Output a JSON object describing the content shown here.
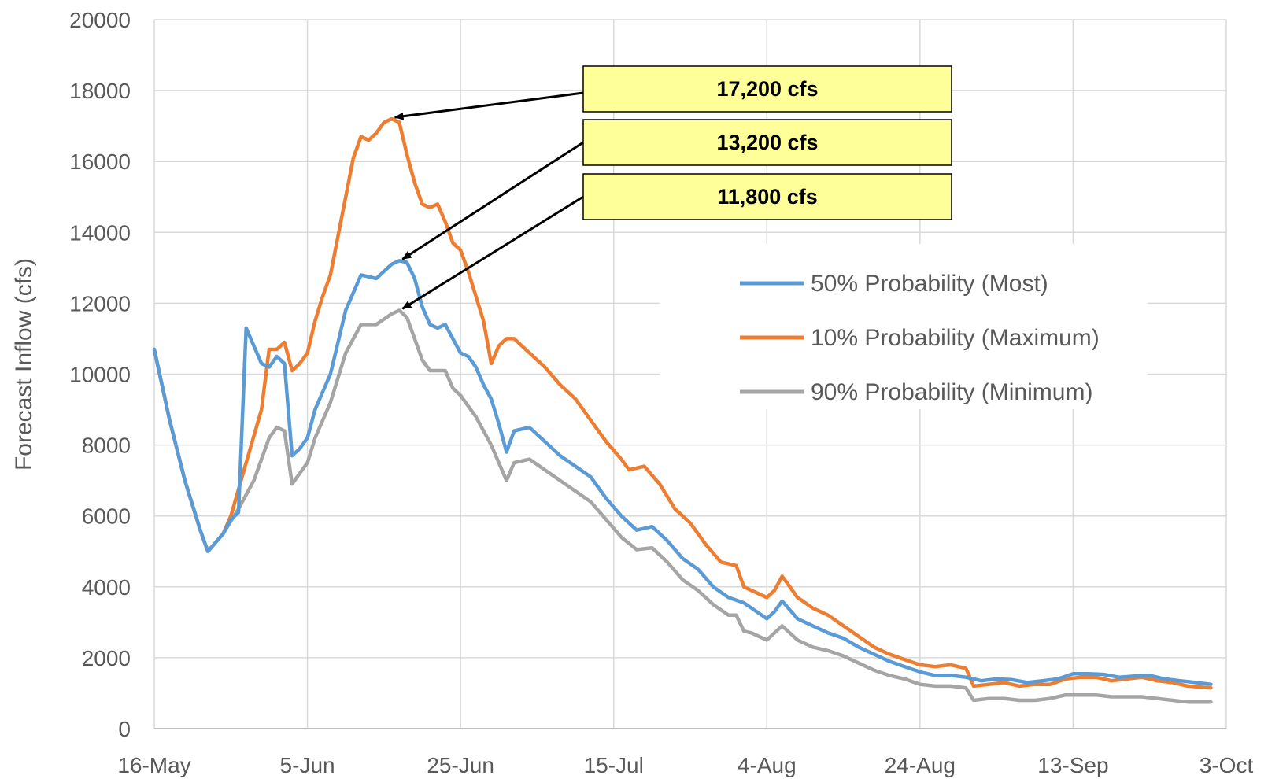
{
  "chart_data": {
    "type": "line",
    "title": "",
    "xlabel": "",
    "ylabel": "Forecast Inflow (cfs)",
    "ylim": [
      0,
      20000
    ],
    "yticks": [
      0,
      2000,
      4000,
      6000,
      8000,
      10000,
      12000,
      14000,
      16000,
      18000,
      20000
    ],
    "ytick_labels": [
      "0",
      "2000",
      "4000",
      "6000",
      "8000",
      "10000",
      "12000",
      "14000",
      "16000",
      "18000",
      "20000"
    ],
    "xlim": [
      "2021-05-16",
      "2021-10-03"
    ],
    "xticks": [
      "2021-05-16",
      "2021-06-05",
      "2021-06-25",
      "2021-07-15",
      "2021-08-04",
      "2021-08-24",
      "2021-09-13",
      "2021-10-03"
    ],
    "xtick_labels": [
      "16-May",
      "5-Jun",
      "25-Jun",
      "15-Jul",
      "4-Aug",
      "24-Aug",
      "13-Sep",
      "3-Oct"
    ],
    "grid": true,
    "legend_position": "right",
    "series": [
      {
        "name": "50% Probability (Most)",
        "color": "#5B9BD5",
        "points": [
          [
            "2021-05-16",
            10700
          ],
          [
            "2021-05-18",
            8700
          ],
          [
            "2021-05-20",
            7000
          ],
          [
            "2021-05-22",
            5600
          ],
          [
            "2021-05-23",
            5000
          ],
          [
            "2021-05-25",
            5500
          ],
          [
            "2021-05-26",
            5900
          ],
          [
            "2021-05-27",
            6100
          ],
          [
            "2021-05-28",
            11300
          ],
          [
            "2021-05-29",
            10800
          ],
          [
            "2021-05-30",
            10300
          ],
          [
            "2021-05-31",
            10200
          ],
          [
            "2021-06-01",
            10500
          ],
          [
            "2021-06-02",
            10300
          ],
          [
            "2021-06-03",
            7700
          ],
          [
            "2021-06-04",
            7900
          ],
          [
            "2021-06-05",
            8200
          ],
          [
            "2021-06-06",
            9000
          ],
          [
            "2021-06-08",
            10000
          ],
          [
            "2021-06-10",
            11800
          ],
          [
            "2021-06-12",
            12800
          ],
          [
            "2021-06-14",
            12700
          ],
          [
            "2021-06-16",
            13100
          ],
          [
            "2021-06-17",
            13200
          ],
          [
            "2021-06-18",
            13150
          ],
          [
            "2021-06-19",
            12700
          ],
          [
            "2021-06-20",
            11900
          ],
          [
            "2021-06-21",
            11400
          ],
          [
            "2021-06-22",
            11300
          ],
          [
            "2021-06-23",
            11400
          ],
          [
            "2021-06-24",
            11000
          ],
          [
            "2021-06-25",
            10600
          ],
          [
            "2021-06-26",
            10500
          ],
          [
            "2021-06-27",
            10200
          ],
          [
            "2021-06-28",
            9700
          ],
          [
            "2021-06-29",
            9300
          ],
          [
            "2021-06-30",
            8600
          ],
          [
            "2021-07-01",
            7800
          ],
          [
            "2021-07-02",
            8400
          ],
          [
            "2021-07-04",
            8500
          ],
          [
            "2021-07-06",
            8100
          ],
          [
            "2021-07-08",
            7700
          ],
          [
            "2021-07-10",
            7400
          ],
          [
            "2021-07-12",
            7100
          ],
          [
            "2021-07-14",
            6500
          ],
          [
            "2021-07-16",
            6000
          ],
          [
            "2021-07-18",
            5600
          ],
          [
            "2021-07-20",
            5700
          ],
          [
            "2021-07-22",
            5300
          ],
          [
            "2021-07-24",
            4800
          ],
          [
            "2021-07-26",
            4500
          ],
          [
            "2021-07-28",
            4000
          ],
          [
            "2021-07-30",
            3700
          ],
          [
            "2021-08-01",
            3550
          ],
          [
            "2021-08-02",
            3400
          ],
          [
            "2021-08-04",
            3100
          ],
          [
            "2021-08-05",
            3300
          ],
          [
            "2021-08-06",
            3600
          ],
          [
            "2021-08-08",
            3100
          ],
          [
            "2021-08-10",
            2900
          ],
          [
            "2021-08-12",
            2700
          ],
          [
            "2021-08-14",
            2550
          ],
          [
            "2021-08-16",
            2300
          ],
          [
            "2021-08-18",
            2100
          ],
          [
            "2021-08-20",
            1900
          ],
          [
            "2021-08-22",
            1750
          ],
          [
            "2021-08-24",
            1600
          ],
          [
            "2021-08-26",
            1500
          ],
          [
            "2021-08-28",
            1500
          ],
          [
            "2021-08-30",
            1450
          ],
          [
            "2021-09-01",
            1350
          ],
          [
            "2021-09-03",
            1400
          ],
          [
            "2021-09-05",
            1380
          ],
          [
            "2021-09-07",
            1300
          ],
          [
            "2021-09-09",
            1350
          ],
          [
            "2021-09-11",
            1400
          ],
          [
            "2021-09-13",
            1550
          ],
          [
            "2021-09-15",
            1550
          ],
          [
            "2021-09-17",
            1530
          ],
          [
            "2021-09-19",
            1450
          ],
          [
            "2021-09-21",
            1480
          ],
          [
            "2021-09-23",
            1500
          ],
          [
            "2021-09-25",
            1400
          ],
          [
            "2021-09-27",
            1350
          ],
          [
            "2021-09-29",
            1300
          ],
          [
            "2021-10-01",
            1250
          ]
        ]
      },
      {
        "name": "10% Probability (Maximum)",
        "color": "#ED7D31",
        "points": [
          [
            "2021-05-16",
            10700
          ],
          [
            "2021-05-18",
            8700
          ],
          [
            "2021-05-20",
            7000
          ],
          [
            "2021-05-22",
            5600
          ],
          [
            "2021-05-23",
            5000
          ],
          [
            "2021-05-25",
            5500
          ],
          [
            "2021-05-26",
            6000
          ],
          [
            "2021-05-28",
            7500
          ],
          [
            "2021-05-30",
            9000
          ],
          [
            "2021-05-31",
            10700
          ],
          [
            "2021-06-01",
            10700
          ],
          [
            "2021-06-02",
            10900
          ],
          [
            "2021-06-03",
            10100
          ],
          [
            "2021-06-04",
            10300
          ],
          [
            "2021-06-05",
            10600
          ],
          [
            "2021-06-06",
            11500
          ],
          [
            "2021-06-07",
            12200
          ],
          [
            "2021-06-08",
            12800
          ],
          [
            "2021-06-09",
            13900
          ],
          [
            "2021-06-10",
            15000
          ],
          [
            "2021-06-11",
            16100
          ],
          [
            "2021-06-12",
            16700
          ],
          [
            "2021-06-13",
            16600
          ],
          [
            "2021-06-14",
            16800
          ],
          [
            "2021-06-15",
            17100
          ],
          [
            "2021-06-16",
            17200
          ],
          [
            "2021-06-17",
            17100
          ],
          [
            "2021-06-18",
            16200
          ],
          [
            "2021-06-19",
            15400
          ],
          [
            "2021-06-20",
            14800
          ],
          [
            "2021-06-21",
            14700
          ],
          [
            "2021-06-22",
            14800
          ],
          [
            "2021-06-23",
            14300
          ],
          [
            "2021-06-24",
            13700
          ],
          [
            "2021-06-25",
            13500
          ],
          [
            "2021-06-26",
            12900
          ],
          [
            "2021-06-27",
            12200
          ],
          [
            "2021-06-28",
            11500
          ],
          [
            "2021-06-29",
            10300
          ],
          [
            "2021-06-30",
            10800
          ],
          [
            "2021-07-01",
            11000
          ],
          [
            "2021-07-02",
            11000
          ],
          [
            "2021-07-04",
            10600
          ],
          [
            "2021-07-06",
            10200
          ],
          [
            "2021-07-08",
            9700
          ],
          [
            "2021-07-10",
            9300
          ],
          [
            "2021-07-12",
            8700
          ],
          [
            "2021-07-14",
            8100
          ],
          [
            "2021-07-16",
            7600
          ],
          [
            "2021-07-17",
            7300
          ],
          [
            "2021-07-19",
            7400
          ],
          [
            "2021-07-21",
            6900
          ],
          [
            "2021-07-23",
            6200
          ],
          [
            "2021-07-25",
            5800
          ],
          [
            "2021-07-27",
            5200
          ],
          [
            "2021-07-29",
            4700
          ],
          [
            "2021-07-31",
            4600
          ],
          [
            "2021-08-01",
            4000
          ],
          [
            "2021-08-02",
            3900
          ],
          [
            "2021-08-04",
            3700
          ],
          [
            "2021-08-05",
            3900
          ],
          [
            "2021-08-06",
            4300
          ],
          [
            "2021-08-07",
            4000
          ],
          [
            "2021-08-08",
            3700
          ],
          [
            "2021-08-10",
            3400
          ],
          [
            "2021-08-12",
            3200
          ],
          [
            "2021-08-14",
            2900
          ],
          [
            "2021-08-16",
            2600
          ],
          [
            "2021-08-18",
            2300
          ],
          [
            "2021-08-20",
            2100
          ],
          [
            "2021-08-22",
            1950
          ],
          [
            "2021-08-24",
            1800
          ],
          [
            "2021-08-26",
            1750
          ],
          [
            "2021-08-28",
            1800
          ],
          [
            "2021-08-30",
            1700
          ],
          [
            "2021-08-31",
            1200
          ],
          [
            "2021-09-02",
            1250
          ],
          [
            "2021-09-04",
            1300
          ],
          [
            "2021-09-06",
            1200
          ],
          [
            "2021-09-08",
            1250
          ],
          [
            "2021-09-10",
            1250
          ],
          [
            "2021-09-12",
            1400
          ],
          [
            "2021-09-14",
            1450
          ],
          [
            "2021-09-16",
            1450
          ],
          [
            "2021-09-18",
            1350
          ],
          [
            "2021-09-20",
            1400
          ],
          [
            "2021-09-22",
            1450
          ],
          [
            "2021-09-24",
            1350
          ],
          [
            "2021-09-26",
            1300
          ],
          [
            "2021-09-28",
            1200
          ],
          [
            "2021-10-01",
            1150
          ]
        ]
      },
      {
        "name": "90% Probability (Minimum)",
        "color": "#A5A5A5",
        "points": [
          [
            "2021-05-16",
            10700
          ],
          [
            "2021-05-18",
            8700
          ],
          [
            "2021-05-20",
            7000
          ],
          [
            "2021-05-22",
            5600
          ],
          [
            "2021-05-23",
            5000
          ],
          [
            "2021-05-25",
            5500
          ],
          [
            "2021-05-27",
            6200
          ],
          [
            "2021-05-29",
            7000
          ],
          [
            "2021-05-31",
            8200
          ],
          [
            "2021-06-01",
            8500
          ],
          [
            "2021-06-02",
            8400
          ],
          [
            "2021-06-03",
            6900
          ],
          [
            "2021-06-04",
            7200
          ],
          [
            "2021-06-05",
            7500
          ],
          [
            "2021-06-06",
            8200
          ],
          [
            "2021-06-08",
            9200
          ],
          [
            "2021-06-10",
            10600
          ],
          [
            "2021-06-12",
            11400
          ],
          [
            "2021-06-14",
            11400
          ],
          [
            "2021-06-16",
            11700
          ],
          [
            "2021-06-17",
            11800
          ],
          [
            "2021-06-18",
            11600
          ],
          [
            "2021-06-19",
            11000
          ],
          [
            "2021-06-20",
            10400
          ],
          [
            "2021-06-21",
            10100
          ],
          [
            "2021-06-22",
            10100
          ],
          [
            "2021-06-23",
            10100
          ],
          [
            "2021-06-24",
            9600
          ],
          [
            "2021-06-25",
            9400
          ],
          [
            "2021-06-27",
            8800
          ],
          [
            "2021-06-29",
            8000
          ],
          [
            "2021-07-01",
            7000
          ],
          [
            "2021-07-02",
            7500
          ],
          [
            "2021-07-04",
            7600
          ],
          [
            "2021-07-06",
            7300
          ],
          [
            "2021-07-08",
            7000
          ],
          [
            "2021-07-10",
            6700
          ],
          [
            "2021-07-12",
            6400
          ],
          [
            "2021-07-14",
            5900
          ],
          [
            "2021-07-16",
            5400
          ],
          [
            "2021-07-18",
            5050
          ],
          [
            "2021-07-20",
            5100
          ],
          [
            "2021-07-22",
            4700
          ],
          [
            "2021-07-24",
            4200
          ],
          [
            "2021-07-26",
            3900
          ],
          [
            "2021-07-28",
            3500
          ],
          [
            "2021-07-30",
            3200
          ],
          [
            "2021-07-31",
            3200
          ],
          [
            "2021-08-01",
            2750
          ],
          [
            "2021-08-02",
            2700
          ],
          [
            "2021-08-04",
            2500
          ],
          [
            "2021-08-05",
            2700
          ],
          [
            "2021-08-06",
            2900
          ],
          [
            "2021-08-08",
            2500
          ],
          [
            "2021-08-10",
            2300
          ],
          [
            "2021-08-12",
            2200
          ],
          [
            "2021-08-14",
            2050
          ],
          [
            "2021-08-16",
            1850
          ],
          [
            "2021-08-18",
            1650
          ],
          [
            "2021-08-20",
            1500
          ],
          [
            "2021-08-22",
            1400
          ],
          [
            "2021-08-24",
            1250
          ],
          [
            "2021-08-26",
            1200
          ],
          [
            "2021-08-28",
            1200
          ],
          [
            "2021-08-30",
            1150
          ],
          [
            "2021-08-31",
            800
          ],
          [
            "2021-09-02",
            850
          ],
          [
            "2021-09-04",
            850
          ],
          [
            "2021-09-06",
            800
          ],
          [
            "2021-09-08",
            800
          ],
          [
            "2021-09-10",
            850
          ],
          [
            "2021-09-12",
            950
          ],
          [
            "2021-09-14",
            950
          ],
          [
            "2021-09-16",
            950
          ],
          [
            "2021-09-18",
            900
          ],
          [
            "2021-09-20",
            900
          ],
          [
            "2021-09-22",
            900
          ],
          [
            "2021-09-24",
            850
          ],
          [
            "2021-09-26",
            800
          ],
          [
            "2021-09-28",
            750
          ],
          [
            "2021-10-01",
            750
          ]
        ]
      }
    ],
    "annotations": [
      {
        "text": "17,200 cfs",
        "target": [
          "2021-06-16",
          17200
        ]
      },
      {
        "text": "13,200 cfs",
        "target": [
          "2021-06-17",
          13200
        ]
      },
      {
        "text": "11,800 cfs",
        "target": [
          "2021-06-17",
          11800
        ]
      }
    ],
    "callout_color": "#FFFF99"
  }
}
